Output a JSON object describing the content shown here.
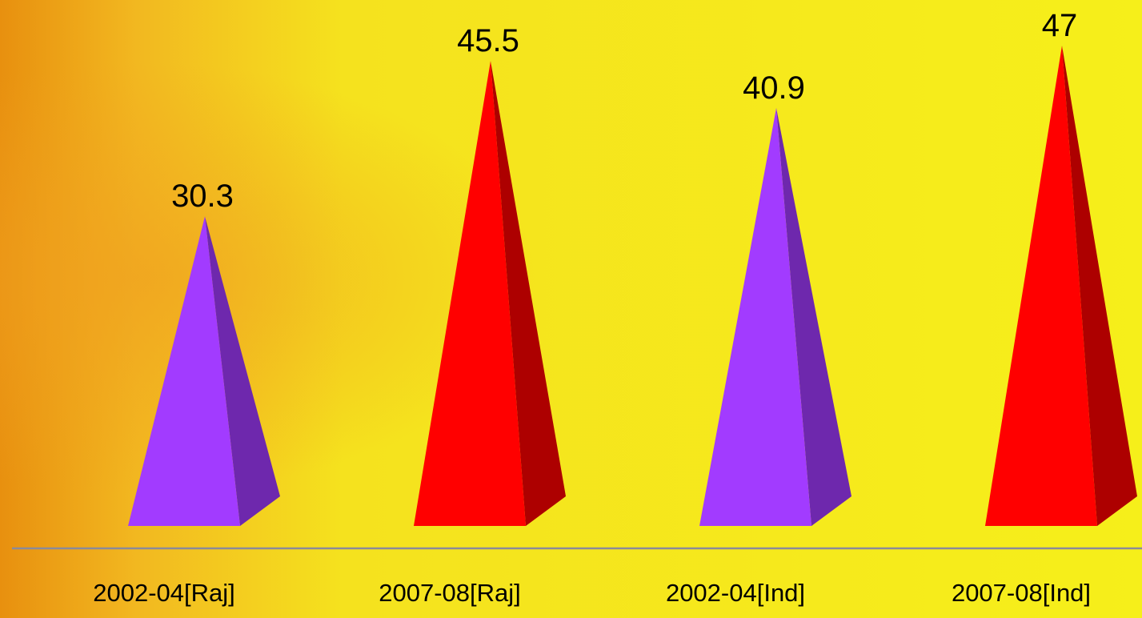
{
  "chart_data": {
    "type": "pyramid",
    "categories": [
      "2002-04[Raj]",
      "2007-08[Raj]",
      "2002-04[Ind]",
      "2007-08[Ind]"
    ],
    "values": [
      30.3,
      45.5,
      40.9,
      47
    ],
    "colors": [
      "#a23bff",
      "#ff0000",
      "#a23bff",
      "#ff0000"
    ]
  }
}
